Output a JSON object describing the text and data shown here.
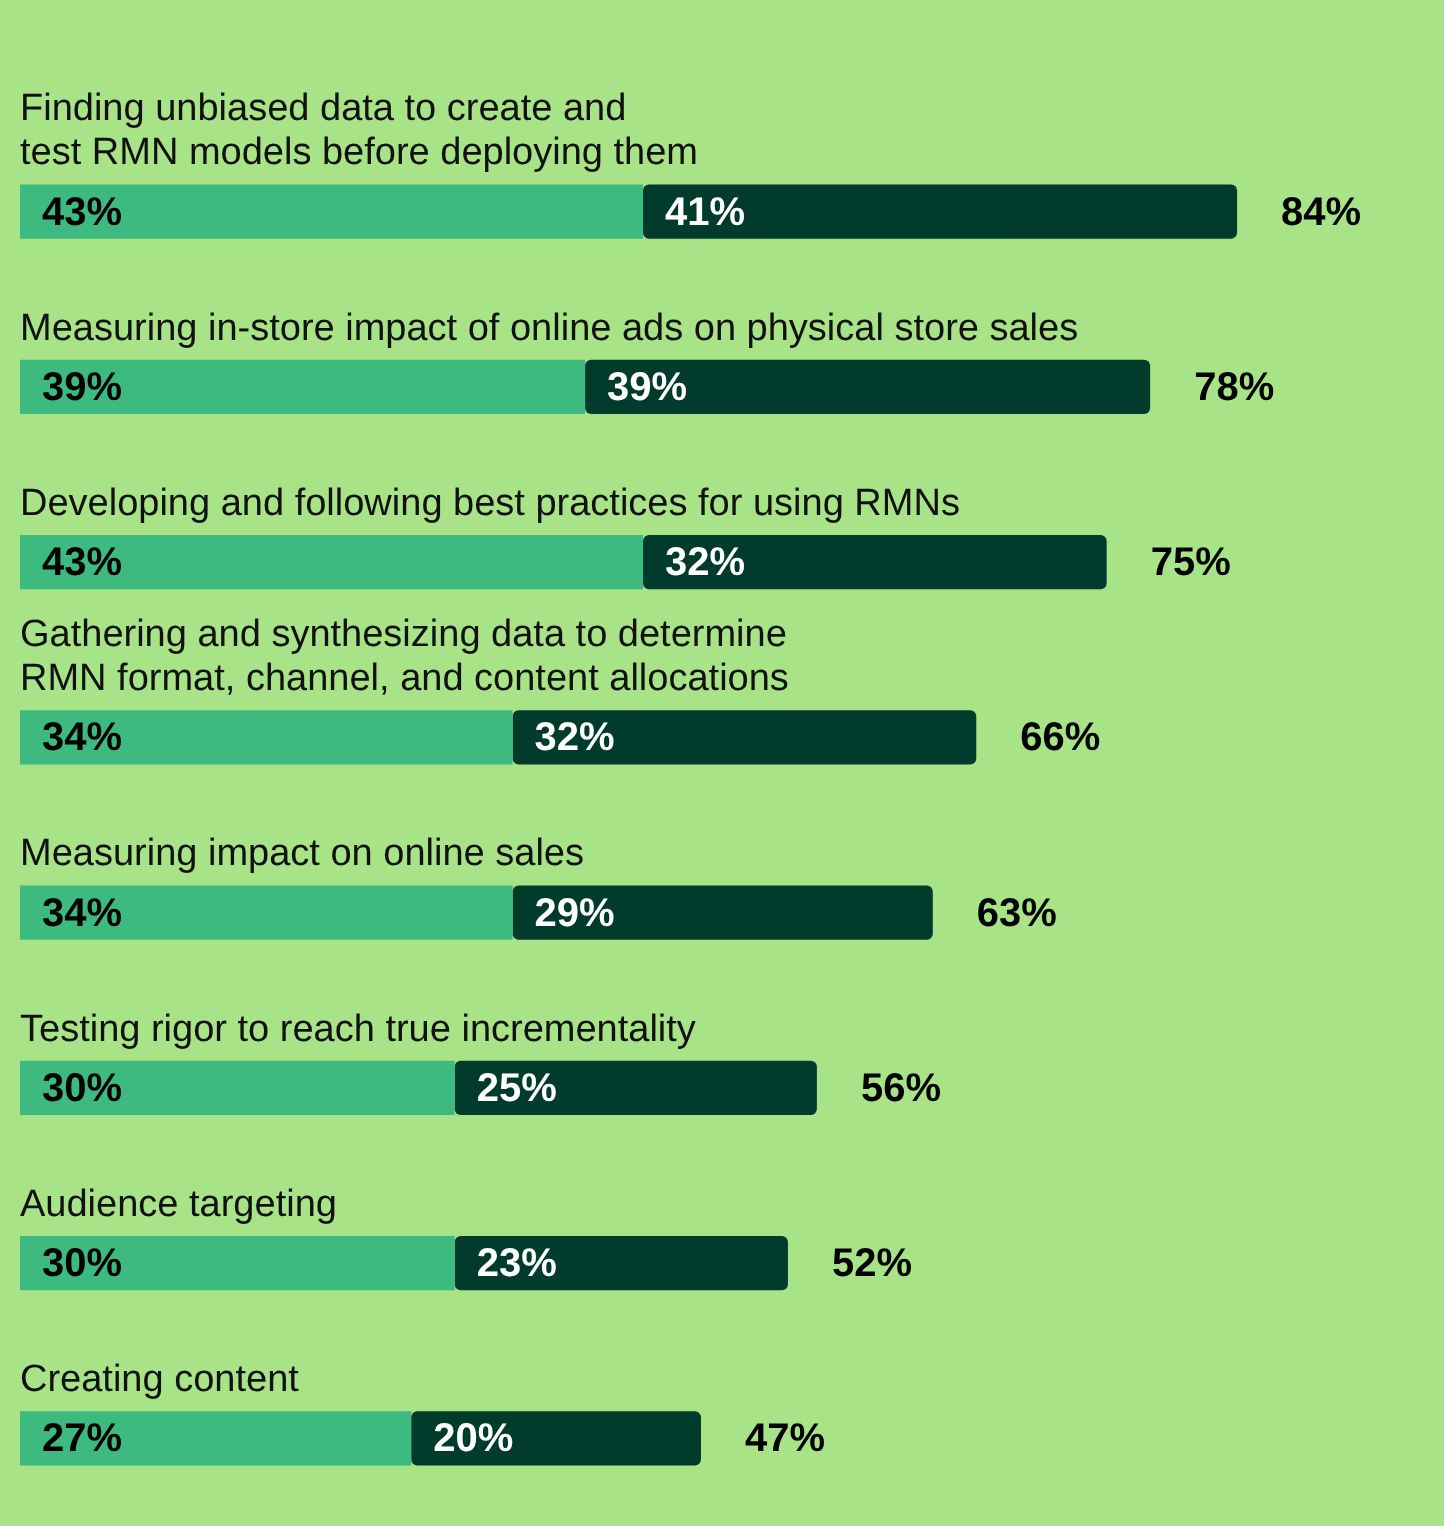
{
  "chart_data": {
    "type": "bar",
    "orientation": "horizontal",
    "stacked": true,
    "categories": [
      "Finding unbiased data to create and\ntest RMN models before deploying them",
      "Measuring in-store impact of online ads on physical store sales",
      "Developing and following best practices for using RMNs",
      "Gathering and synthesizing data to determine\nRMN format, channel, and content allocations",
      "Measuring impact on online sales",
      "Testing rigor to reach true incrementality",
      "Audience targeting",
      "Creating content"
    ],
    "series": [
      {
        "color": "#3dba80",
        "values": [
          43,
          39,
          43,
          34,
          34,
          30,
          30,
          27
        ],
        "value_labels": [
          "43%",
          "39%",
          "43%",
          "34%",
          "34%",
          "30%",
          "30%",
          "27%"
        ]
      },
      {
        "color": "#003b2c",
        "values": [
          41,
          39,
          32,
          32,
          29,
          25,
          23,
          20
        ],
        "value_labels": [
          "41%",
          "39%",
          "32%",
          "32%",
          "29%",
          "25%",
          "23%",
          "20%"
        ]
      }
    ],
    "totals": [
      "84%",
      "78%",
      "75%",
      "66%",
      "63%",
      "56%",
      "52%",
      "47%"
    ],
    "tick_labels": false
  }
}
